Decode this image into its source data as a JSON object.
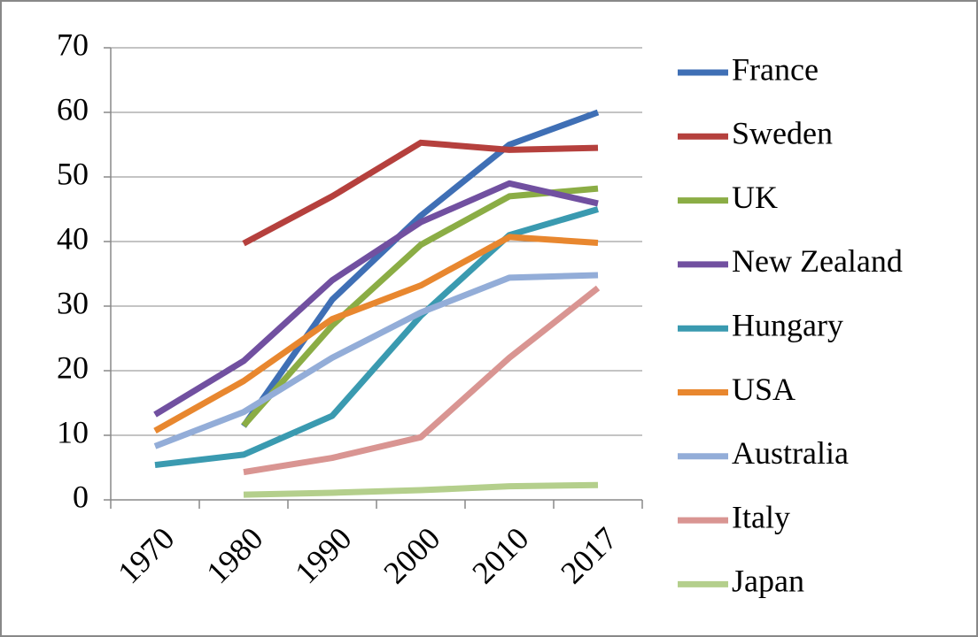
{
  "chart_data": {
    "type": "line",
    "categories": [
      "1970",
      "1980",
      "1990",
      "2000",
      "2010",
      "2017"
    ],
    "ylim": [
      0,
      70
    ],
    "yticks": [
      0,
      10,
      20,
      30,
      40,
      50,
      60,
      70
    ],
    "grid": true,
    "legend": "right",
    "series": [
      {
        "name": "France",
        "color": "#3f6fb5",
        "values": [
          null,
          11.4,
          31,
          44,
          55,
          60
        ]
      },
      {
        "name": "Sweden",
        "color": "#b5403d",
        "values": [
          null,
          39.7,
          47,
          55.3,
          54.2,
          54.5
        ]
      },
      {
        "name": "UK",
        "color": "#8bad45",
        "values": [
          null,
          11.5,
          27,
          39.5,
          47,
          48.2
        ]
      },
      {
        "name": "New Zealand",
        "color": "#7150a0",
        "values": [
          13.2,
          21.5,
          34,
          43,
          49,
          45.9
        ]
      },
      {
        "name": "Hungary",
        "color": "#3a9ab0",
        "values": [
          5.4,
          7,
          13,
          28.5,
          41,
          45
        ]
      },
      {
        "name": "USA",
        "color": "#e8872f",
        "values": [
          10.7,
          18.4,
          28,
          33.2,
          40.7,
          39.8
        ]
      },
      {
        "name": "Australia",
        "color": "#93add8",
        "values": [
          8.3,
          13.6,
          22,
          29,
          34.4,
          34.8
        ]
      },
      {
        "name": "Italy",
        "color": "#d99592",
        "values": [
          null,
          4.3,
          6.5,
          9.7,
          22,
          32.8
        ]
      },
      {
        "name": "Japan",
        "color": "#b4cf8c",
        "values": [
          null,
          0.8,
          1.1,
          1.5,
          2.1,
          2.3
        ]
      }
    ]
  }
}
